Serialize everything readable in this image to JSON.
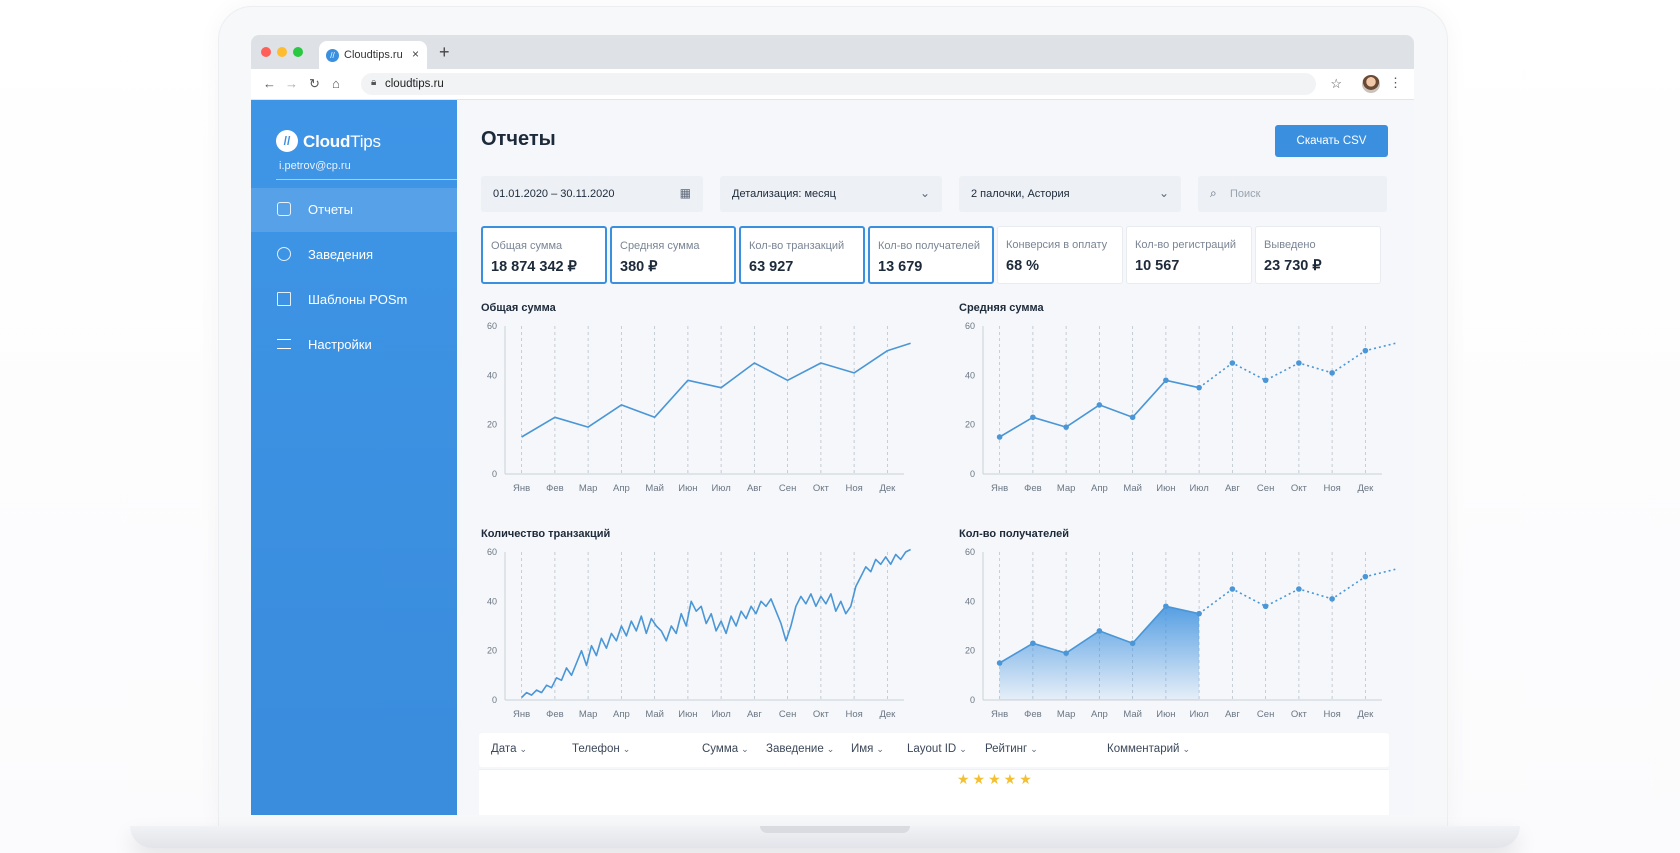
{
  "browser": {
    "tab_title": "Cloudtips.ru",
    "favicon_letter": "//",
    "close_glyph": "×",
    "newtab_glyph": "+",
    "url": "cloudtips.ru"
  },
  "colors": {
    "accent": "#3a8fdf",
    "sidebar": "#3a8cdc",
    "line": "#4a96d6",
    "rating": "#f4c02f"
  },
  "sidebar": {
    "logo_bold": "Cloud",
    "logo_light": "Tips",
    "email": "i.petrov@cp.ru",
    "items": [
      {
        "label": "Отчеты",
        "icon": "report-icon",
        "active": true
      },
      {
        "label": "Заведения",
        "icon": "location-icon",
        "active": false
      },
      {
        "label": "Шаблоны POSm",
        "icon": "template-icon",
        "active": false
      },
      {
        "label": "Настройки",
        "icon": "settings-icon",
        "active": false
      }
    ]
  },
  "header": {
    "title": "Отчеты",
    "csv_button": "Скачать CSV"
  },
  "filters": {
    "date_range": "01.01.2020 – 30.11.2020",
    "detail": "Детализация: месяц",
    "place": "2 палочки, Астория",
    "search_placeholder": "Поиск"
  },
  "kpis": [
    {
      "label": "Общая сумма",
      "value": "18 874 342 ₽",
      "selected": true
    },
    {
      "label": "Средняя сумма",
      "value": "380 ₽",
      "selected": true
    },
    {
      "label": "Кол-во транзакций",
      "value": "63 927",
      "selected": true
    },
    {
      "label": "Кол-во получателей",
      "value": "13 679",
      "selected": true
    },
    {
      "label": "Конверсия в оплату",
      "value": "68 %",
      "selected": false
    },
    {
      "label": "Кол-во регистраций",
      "value": "10 567",
      "selected": false
    },
    {
      "label": "Выведено",
      "value": "23 730 ₽",
      "selected": false
    }
  ],
  "chart_data": [
    {
      "type": "line",
      "title": "Общая сумма",
      "categories": [
        "Янв",
        "Фев",
        "Мар",
        "Апр",
        "Май",
        "Июн",
        "Июл",
        "Авг",
        "Сен",
        "Окт",
        "Ноя",
        "Дек"
      ],
      "x": [
        0,
        1,
        2,
        3,
        4,
        5,
        6,
        7,
        8,
        9,
        10,
        11,
        11.7
      ],
      "values": [
        15,
        23,
        19,
        28,
        23,
        38,
        35,
        45,
        38,
        45,
        41,
        50,
        53
      ],
      "ylim": [
        0,
        60
      ],
      "yticks": [
        "0",
        "20",
        "40",
        "60"
      ],
      "xlabel": "",
      "ylabel": "",
      "grid": true
    },
    {
      "type": "line",
      "title": "Средняя сумма",
      "categories": [
        "Янв",
        "Фев",
        "Мар",
        "Апр",
        "Май",
        "Июн",
        "Июл",
        "Авг",
        "Сен",
        "Окт",
        "Ноя",
        "Дек"
      ],
      "x": [
        0,
        1,
        2,
        3,
        4,
        5,
        6,
        7,
        8,
        9,
        10,
        11,
        11.9
      ],
      "values": [
        15,
        23,
        19,
        28,
        23,
        38,
        35,
        45,
        38,
        45,
        41,
        50,
        53
      ],
      "solid_until": 6,
      "markers": true,
      "ylim": [
        0,
        60
      ],
      "yticks": [
        "0",
        "20",
        "40",
        "60"
      ],
      "xlabel": "",
      "ylabel": "",
      "grid": true
    },
    {
      "type": "line",
      "title": "Количество транзакций",
      "categories": [
        "Янв",
        "Фев",
        "Мар",
        "Апр",
        "Май",
        "Июн",
        "Июл",
        "Авг",
        "Сен",
        "Окт",
        "Ноя",
        "Дек"
      ],
      "x": [
        0,
        0.15,
        0.3,
        0.45,
        0.6,
        0.75,
        0.9,
        1.05,
        1.2,
        1.35,
        1.5,
        1.65,
        1.8,
        1.95,
        2.1,
        2.25,
        2.4,
        2.55,
        2.7,
        2.85,
        3.0,
        3.15,
        3.3,
        3.45,
        3.6,
        3.75,
        3.9,
        4.05,
        4.2,
        4.35,
        4.5,
        4.65,
        4.8,
        4.95,
        5.1,
        5.25,
        5.4,
        5.55,
        5.7,
        5.85,
        6.0,
        6.15,
        6.3,
        6.45,
        6.6,
        6.75,
        6.9,
        7.05,
        7.2,
        7.35,
        7.5,
        7.65,
        7.8,
        7.95,
        8.1,
        8.25,
        8.4,
        8.55,
        8.7,
        8.85,
        9.0,
        9.15,
        9.3,
        9.45,
        9.6,
        9.75,
        9.9,
        10.05,
        10.2,
        10.35,
        10.5,
        10.65,
        10.8,
        10.95,
        11.1,
        11.25,
        11.4,
        11.55,
        11.7
      ],
      "values": [
        1,
        3,
        2,
        4,
        3,
        6,
        5,
        9,
        8,
        13,
        10,
        15,
        20,
        14,
        22,
        18,
        25,
        21,
        27,
        24,
        30,
        26,
        32,
        28,
        34,
        27,
        33,
        30,
        28,
        24,
        30,
        27,
        35,
        30,
        40,
        36,
        38,
        31,
        35,
        28,
        32,
        27,
        34,
        30,
        36,
        33,
        38,
        35,
        40,
        38,
        41,
        36,
        31,
        24,
        30,
        38,
        42,
        39,
        43,
        38,
        42,
        39,
        43,
        36,
        40,
        35,
        38,
        46,
        50,
        54,
        52,
        57,
        55,
        58,
        55,
        59,
        57,
        60,
        61
      ],
      "ylim": [
        0,
        60
      ],
      "yticks": [
        "0",
        "20",
        "40",
        "60"
      ],
      "xlabel": "",
      "ylabel": "",
      "grid": true
    },
    {
      "type": "area",
      "title": "Кол-во получателей",
      "categories": [
        "Янв",
        "Фев",
        "Мар",
        "Апр",
        "Май",
        "Июн",
        "Июл",
        "Авг",
        "Сен",
        "Окт",
        "Ноя",
        "Дек"
      ],
      "x": [
        0,
        1,
        2,
        3,
        4,
        5,
        6,
        7,
        8,
        9,
        10,
        11,
        11.9
      ],
      "values": [
        15,
        23,
        19,
        28,
        23,
        38,
        35,
        45,
        38,
        45,
        41,
        50,
        53
      ],
      "solid_until": 6,
      "markers": true,
      "ylim": [
        0,
        60
      ],
      "yticks": [
        "0",
        "20",
        "40",
        "60"
      ],
      "xlabel": "",
      "ylabel": "",
      "grid": true
    }
  ],
  "table": {
    "columns": [
      "Дата",
      "Телефон",
      "Сумма",
      "Заведение",
      "Имя",
      "Layout ID",
      "Рейтинг",
      "Комментарий"
    ],
    "first_row_rating": "★★★★★"
  }
}
